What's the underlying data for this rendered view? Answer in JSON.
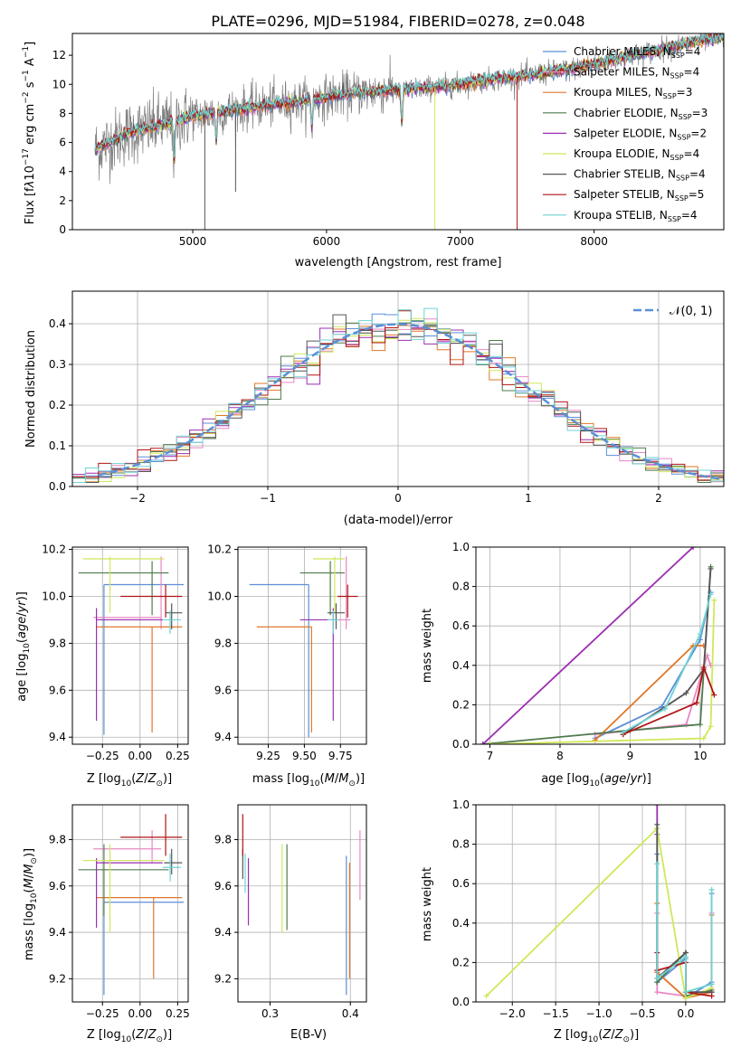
{
  "colors": {
    "Chabrier MILES": "#5b8fd6",
    "Salpeter MILES": "#e887c4",
    "Kroupa MILES": "#e0772a",
    "Chabrier ELODIE": "#4f7a4f",
    "Salpeter ELODIE": "#9b2fb0",
    "Kroupa ELODIE": "#cfe85a",
    "Chabrier STELIB": "#555555",
    "Salpeter STELIB": "#b01414",
    "Kroupa STELIB": "#6fd3d3",
    "grid": "#b0b0b0",
    "gauss": "#5b8fd6",
    "spectrum": "#7f7f7f"
  },
  "chart_data": [
    {
      "id": "spectrum",
      "type": "line",
      "title": "PLATE=0296, MJD=51984, FIBERID=0278, z=0.048",
      "xlabel": "wavelength [Angstrom, rest frame]",
      "ylabel": "Flux [fλ10^-17 erg cm^-2 s^-1 A^-1]",
      "xlim": [
        4100,
        8970
      ],
      "ylim": [
        0,
        13.5
      ],
      "xticks": [
        5000,
        6000,
        7000,
        8000
      ],
      "yticks": [
        0,
        2,
        4,
        6,
        8,
        10,
        12
      ],
      "legend_loc": "right",
      "legend": [
        {
          "name": "Chabrier MILES",
          "nssp": "4"
        },
        {
          "name": "Salpeter MILES",
          "nssp": "4"
        },
        {
          "name": "Kroupa MILES",
          "nssp": "3"
        },
        {
          "name": "Chabrier ELODIE",
          "nssp": "3"
        },
        {
          "name": "Salpeter ELODIE",
          "nssp": "2"
        },
        {
          "name": "Kroupa ELODIE",
          "nssp": "4"
        },
        {
          "name": "Chabrier STELIB",
          "nssp": "4"
        },
        {
          "name": "Salpeter STELIB",
          "nssp": "5"
        },
        {
          "name": "Kroupa STELIB",
          "nssp": "4"
        }
      ],
      "data_wavelength_range": [
        4270,
        8970
      ],
      "continuum": {
        "x": [
          4270,
          4500,
          4800,
          5000,
          5200,
          5500,
          5800,
          6000,
          6200,
          6500,
          6800,
          7000,
          7200,
          7500,
          7800,
          8000,
          8200,
          8500,
          8800,
          8970
        ],
        "y": [
          5.5,
          6.6,
          7.3,
          7.8,
          8.1,
          8.5,
          8.8,
          9.1,
          9.4,
          9.6,
          9.8,
          10.0,
          10.3,
          10.6,
          11.0,
          11.4,
          11.8,
          12.4,
          13.0,
          13.3
        ]
      },
      "absorption_lines": [
        {
          "x": 4861,
          "depth": 3.0
        },
        {
          "x": 5175,
          "depth": 2.0
        },
        {
          "x": 5890,
          "depth": 2.0
        },
        {
          "x": 6563,
          "depth": 2.5
        }
      ],
      "artifacts": [
        {
          "x": 5090,
          "y_min": 0,
          "series": "Chabrier STELIB"
        },
        {
          "x": 5320,
          "y_min": 2.6,
          "series": "Chabrier STELIB"
        },
        {
          "x": 6810,
          "y_min": 0,
          "series": "Kroupa ELODIE"
        },
        {
          "x": 7425,
          "y_min": 0,
          "series": "Salpeter STELIB"
        }
      ]
    },
    {
      "id": "residuals",
      "type": "line",
      "xlabel": "(data-model)/error",
      "ylabel": "Normed distribution",
      "xlim": [
        -2.5,
        2.5
      ],
      "ylim": [
        0,
        0.48
      ],
      "xticks": [
        -2,
        -1,
        0,
        1,
        2
      ],
      "yticks": [
        0.0,
        0.1,
        0.2,
        0.3,
        0.4
      ],
      "xtick_labels": [
        "−2",
        "−1",
        "0",
        "1",
        "2"
      ],
      "ytick_labels": [
        "0.0",
        "0.1",
        "0.2",
        "0.3",
        "0.4"
      ],
      "bin_width": 0.1,
      "gauss_label": "𝒩(0, 1)",
      "legend_loc": "top-right"
    },
    {
      "id": "age_vs_Z",
      "type": "scatter",
      "xlabel": "Z [log10(Z/Z⊙)]",
      "ylabel": "age [log10(age/yr)]",
      "xlim": [
        -0.45,
        0.32
      ],
      "ylim": [
        9.37,
        10.21
      ],
      "xticks": [
        -0.25,
        0.0,
        0.25
      ],
      "yticks": [
        9.4,
        9.6,
        9.8,
        10.0,
        10.2
      ],
      "xtick_labels": [
        "−0.25",
        "0.00",
        "0.25"
      ],
      "ytick_labels": [
        "9.4",
        "9.6",
        "9.8",
        "10.0",
        "10.2"
      ],
      "points": [
        {
          "series": "Chabrier MILES",
          "x": -0.24,
          "xlo": -0.24,
          "xhi": 0.29,
          "y": 10.05,
          "ylo": 9.41,
          "yhi": 10.05
        },
        {
          "series": "Salpeter MILES",
          "x": 0.14,
          "xlo": -0.31,
          "xhi": 0.14,
          "y": 9.91,
          "ylo": 9.86,
          "yhi": 10.17
        },
        {
          "series": "Kroupa MILES",
          "x": 0.08,
          "xlo": -0.29,
          "xhi": 0.28,
          "y": 9.87,
          "ylo": 9.42,
          "yhi": 9.87
        },
        {
          "series": "Chabrier ELODIE",
          "x": 0.08,
          "xlo": -0.41,
          "xhi": 0.19,
          "y": 10.1,
          "ylo": 9.92,
          "yhi": 10.15
        },
        {
          "series": "Salpeter ELODIE",
          "x": -0.29,
          "xlo": -0.29,
          "xhi": 0.15,
          "y": 9.9,
          "ylo": 9.47,
          "yhi": 9.95
        },
        {
          "series": "Kroupa ELODIE",
          "x": -0.2,
          "xlo": -0.38,
          "xhi": 0.16,
          "y": 10.16,
          "ylo": 9.93,
          "yhi": 10.17
        },
        {
          "series": "Chabrier STELIB",
          "x": 0.21,
          "xlo": 0.17,
          "xhi": 0.28,
          "y": 9.93,
          "ylo": 9.86,
          "yhi": 9.97
        },
        {
          "series": "Salpeter STELIB",
          "x": 0.17,
          "xlo": -0.13,
          "xhi": 0.28,
          "y": 10.0,
          "ylo": 9.91,
          "yhi": 10.05
        },
        {
          "series": "Kroupa STELIB",
          "x": 0.2,
          "xlo": 0.15,
          "xhi": 0.27,
          "y": 9.9,
          "ylo": 9.84,
          "yhi": 9.94
        }
      ]
    },
    {
      "id": "age_vs_mass",
      "type": "scatter",
      "xlabel": "mass [log10(M/M⊙)]",
      "xlim": [
        9.04,
        9.93
      ],
      "ylim": [
        9.37,
        10.21
      ],
      "xticks": [
        9.25,
        9.5,
        9.75
      ],
      "yticks": [
        9.4,
        9.6,
        9.8,
        10.0,
        10.2
      ],
      "xtick_labels": [
        "9.25",
        "9.50",
        "9.75"
      ],
      "ytick_labels": [
        "9.4",
        "9.6",
        "9.8",
        "10.0",
        "10.2"
      ],
      "points": [
        {
          "series": "Chabrier MILES",
          "x": 9.53,
          "xlo": 9.12,
          "xhi": 9.53,
          "y": 10.05,
          "ylo": 9.4,
          "yhi": 10.05
        },
        {
          "series": "Salpeter MILES",
          "x": 9.79,
          "xlo": 9.7,
          "xhi": 9.82,
          "y": 9.9,
          "ylo": 9.86,
          "yhi": 10.17
        },
        {
          "series": "Kroupa MILES",
          "x": 9.55,
          "xlo": 9.17,
          "xhi": 9.55,
          "y": 9.87,
          "ylo": 9.42,
          "yhi": 9.87
        },
        {
          "series": "Chabrier ELODIE",
          "x": 9.68,
          "xlo": 9.47,
          "xhi": 9.78,
          "y": 10.1,
          "ylo": 9.92,
          "yhi": 10.15
        },
        {
          "series": "Salpeter ELODIE",
          "x": 9.7,
          "xlo": 9.47,
          "xhi": 9.72,
          "y": 9.9,
          "ylo": 9.47,
          "yhi": 9.95
        },
        {
          "series": "Kroupa ELODIE",
          "x": 9.71,
          "xlo": 9.56,
          "xhi": 9.78,
          "y": 10.16,
          "ylo": 9.93,
          "yhi": 10.17
        },
        {
          "series": "Chabrier STELIB",
          "x": 9.72,
          "xlo": 9.66,
          "xhi": 9.78,
          "y": 9.93,
          "ylo": 9.86,
          "yhi": 9.97
        },
        {
          "series": "Salpeter STELIB",
          "x": 9.8,
          "xlo": 9.73,
          "xhi": 9.87,
          "y": 10.0,
          "ylo": 9.91,
          "yhi": 10.05
        },
        {
          "series": "Kroupa STELIB",
          "x": 9.7,
          "xlo": 9.66,
          "xhi": 9.74,
          "y": 9.9,
          "ylo": 9.84,
          "yhi": 9.94
        }
      ]
    },
    {
      "id": "weight_vs_age",
      "type": "line",
      "xlabel": "age [log10(age/yr)]",
      "ylabel": "mass weight",
      "xlim": [
        6.8,
        10.35
      ],
      "ylim": [
        0,
        1
      ],
      "xticks": [
        7,
        8,
        9,
        10
      ],
      "yticks": [
        0.0,
        0.2,
        0.4,
        0.6,
        0.8,
        1.0
      ],
      "xtick_labels": [
        "7",
        "8",
        "9",
        "10"
      ],
      "ytick_labels": [
        "0.0",
        "0.2",
        "0.4",
        "0.6",
        "0.8",
        "1.0"
      ],
      "series": [
        {
          "name": "Chabrier MILES",
          "x": [
            8.5,
            9.45,
            10.0,
            10.15
          ],
          "y": [
            0.03,
            0.19,
            0.53,
            0.77
          ]
        },
        {
          "name": "Salpeter MILES",
          "x": [
            8.5,
            9.8,
            10.1,
            10.15
          ],
          "y": [
            0.05,
            0.1,
            0.45,
            0.4
          ]
        },
        {
          "name": "Kroupa MILES",
          "x": [
            8.5,
            9.9,
            10.05
          ],
          "y": [
            0.02,
            0.5,
            0.5
          ]
        },
        {
          "name": "Chabrier ELODIE",
          "x": [
            6.9,
            9.0,
            10.0,
            10.15
          ],
          "y": [
            0.0,
            0.07,
            0.1,
            0.9
          ]
        },
        {
          "name": "Salpeter ELODIE",
          "x": [
            6.9,
            9.9
          ],
          "y": [
            0.0,
            1.0
          ]
        },
        {
          "name": "Kroupa ELODIE",
          "x": [
            7.0,
            10.05,
            10.15,
            10.2
          ],
          "y": [
            0.0,
            0.03,
            0.09,
            0.73
          ]
        },
        {
          "name": "Chabrier STELIB",
          "x": [
            8.9,
            9.8,
            10.05,
            10.15
          ],
          "y": [
            0.05,
            0.26,
            0.38,
            0.89
          ]
        },
        {
          "name": "Salpeter STELIB",
          "x": [
            8.9,
            9.95,
            10.05,
            10.2
          ],
          "y": [
            0.05,
            0.21,
            0.39,
            0.25
          ]
        },
        {
          "name": "Kroupa STELIB",
          "x": [
            8.9,
            9.5,
            10.0,
            10.15
          ],
          "y": [
            0.06,
            0.18,
            0.56,
            0.76
          ]
        }
      ]
    },
    {
      "id": "mass_vs_Z",
      "type": "scatter",
      "xlabel": "Z [log10(Z/Z⊙)]",
      "ylabel": "mass [log10(M/M⊙)]",
      "xlim": [
        -0.45,
        0.32
      ],
      "ylim": [
        9.1,
        9.95
      ],
      "xticks": [
        -0.25,
        0.0,
        0.25
      ],
      "yticks": [
        9.2,
        9.4,
        9.6,
        9.8
      ],
      "xtick_labels": [
        "−0.25",
        "0.00",
        "0.25"
      ],
      "ytick_labels": [
        "9.2",
        "9.4",
        "9.6",
        "9.8"
      ],
      "points": [
        {
          "series": "Chabrier MILES",
          "x": -0.24,
          "xlo": -0.24,
          "xhi": 0.29,
          "y": 9.53,
          "ylo": 9.13,
          "yhi": 9.53
        },
        {
          "series": "Salpeter MILES",
          "x": 0.08,
          "xlo": -0.31,
          "xhi": 0.14,
          "y": 9.76,
          "ylo": 9.7,
          "yhi": 9.84
        },
        {
          "series": "Kroupa MILES",
          "x": 0.09,
          "xlo": -0.29,
          "xhi": 0.28,
          "y": 9.55,
          "ylo": 9.2,
          "yhi": 9.55
        },
        {
          "series": "Chabrier ELODIE",
          "x": -0.24,
          "xlo": -0.41,
          "xhi": 0.19,
          "y": 9.67,
          "ylo": 9.47,
          "yhi": 9.78
        },
        {
          "series": "Salpeter ELODIE",
          "x": -0.29,
          "xlo": -0.29,
          "xhi": 0.15,
          "y": 9.7,
          "ylo": 9.42,
          "yhi": 9.72
        },
        {
          "series": "Kroupa ELODIE",
          "x": -0.2,
          "xlo": -0.38,
          "xhi": 0.16,
          "y": 9.71,
          "ylo": 9.4,
          "yhi": 9.78
        },
        {
          "series": "Chabrier STELIB",
          "x": 0.21,
          "xlo": 0.16,
          "xhi": 0.28,
          "y": 9.7,
          "ylo": 9.65,
          "yhi": 9.76
        },
        {
          "series": "Salpeter STELIB",
          "x": 0.17,
          "xlo": -0.13,
          "xhi": 0.28,
          "y": 9.81,
          "ylo": 9.73,
          "yhi": 9.91
        },
        {
          "series": "Kroupa STELIB",
          "x": 0.2,
          "xlo": 0.15,
          "xhi": 0.27,
          "y": 9.68,
          "ylo": 9.62,
          "yhi": 9.74
        }
      ]
    },
    {
      "id": "mass_vs_ebv",
      "type": "scatter",
      "xlabel": "E(B-V)",
      "xlim": [
        0.26,
        0.42
      ],
      "ylim": [
        9.1,
        9.95
      ],
      "xticks": [
        0.3,
        0.4
      ],
      "yticks": [
        9.2,
        9.4,
        9.6,
        9.8
      ],
      "xtick_labels": [
        "0.3",
        "0.4"
      ],
      "ytick_labels": [
        "9.2",
        "9.4",
        "9.6",
        "9.8"
      ],
      "points": [
        {
          "series": "Chabrier MILES",
          "x": 0.395,
          "ylo": 9.13,
          "yhi": 9.73
        },
        {
          "series": "Salpeter MILES",
          "x": 0.412,
          "ylo": 9.54,
          "yhi": 9.84
        },
        {
          "series": "Kroupa MILES",
          "x": 0.399,
          "ylo": 9.2,
          "yhi": 9.7
        },
        {
          "series": "Chabrier ELODIE",
          "x": 0.321,
          "ylo": 9.41,
          "yhi": 9.78
        },
        {
          "series": "Salpeter ELODIE",
          "x": 0.273,
          "ylo": 9.43,
          "yhi": 9.72
        },
        {
          "series": "Kroupa ELODIE",
          "x": 0.315,
          "ylo": 9.4,
          "yhi": 9.78
        },
        {
          "series": "Chabrier STELIB",
          "x": 0.266,
          "ylo": 9.63,
          "yhi": 9.76
        },
        {
          "series": "Salpeter STELIB",
          "x": 0.266,
          "ylo": 9.73,
          "yhi": 9.91
        },
        {
          "series": "Kroupa STELIB",
          "x": 0.269,
          "ylo": 9.57,
          "yhi": 9.74
        }
      ]
    },
    {
      "id": "weight_vs_Z",
      "type": "line",
      "xlabel": "Z [log10(Z/Z⊙)]",
      "ylabel": "mass weight",
      "xlim": [
        -2.42,
        0.45
      ],
      "ylim": [
        0,
        1
      ],
      "xticks": [
        -2.0,
        -1.5,
        -1.0,
        -0.5,
        0.0
      ],
      "yticks": [
        0.0,
        0.2,
        0.4,
        0.6,
        0.8,
        1.0
      ],
      "xtick_labels": [
        "−2.0",
        "−1.5",
        "−1.0",
        "−0.5",
        "0.0"
      ],
      "ytick_labels": [
        "0.0",
        "0.2",
        "0.4",
        "0.6",
        "0.8",
        "1.0"
      ],
      "series": [
        {
          "name": "Chabrier MILES",
          "x": [
            -0.33,
            -0.33,
            0.0,
            0.0,
            0.3,
            0.3
          ],
          "y": [
            0.75,
            0.1,
            0.22,
            0.02,
            0.1,
            0.55
          ]
        },
        {
          "name": "Salpeter MILES",
          "x": [
            -0.33,
            -0.33,
            0.0,
            0.3,
            0.3
          ],
          "y": [
            0.45,
            0.05,
            0.03,
            0.05,
            0.45
          ]
        },
        {
          "name": "Kroupa MILES",
          "x": [
            -0.33,
            -0.33,
            0.0,
            0.3,
            0.3
          ],
          "y": [
            0.5,
            0.15,
            0.02,
            0.05,
            0.44
          ]
        },
        {
          "name": "Chabrier ELODIE",
          "x": [
            -0.33,
            -0.33,
            0.0,
            0.0,
            0.3
          ],
          "y": [
            0.88,
            0.1,
            0.25,
            0.03,
            0.06
          ]
        },
        {
          "name": "Salpeter ELODIE",
          "x": [
            -0.33,
            -0.33
          ],
          "y": [
            1.0,
            0.85
          ]
        },
        {
          "name": "Kroupa ELODIE",
          "x": [
            -2.3,
            -0.33,
            0.0,
            0.3
          ],
          "y": [
            0.03,
            0.88,
            0.02,
            0.07
          ]
        },
        {
          "name": "Chabrier STELIB",
          "x": [
            -0.33,
            -0.33,
            0.0,
            0.0,
            0.3
          ],
          "y": [
            0.9,
            0.12,
            0.25,
            0.05,
            0.05
          ]
        },
        {
          "name": "Salpeter STELIB",
          "x": [
            -0.33,
            -0.33,
            0.0,
            0.0,
            0.3
          ],
          "y": [
            0.25,
            0.16,
            0.2,
            0.05,
            0.03
          ]
        },
        {
          "name": "Kroupa STELIB",
          "x": [
            -0.33,
            -0.33,
            0.0,
            0.0,
            0.3,
            0.3
          ],
          "y": [
            0.7,
            0.12,
            0.23,
            0.05,
            0.09,
            0.57
          ]
        }
      ]
    }
  ]
}
